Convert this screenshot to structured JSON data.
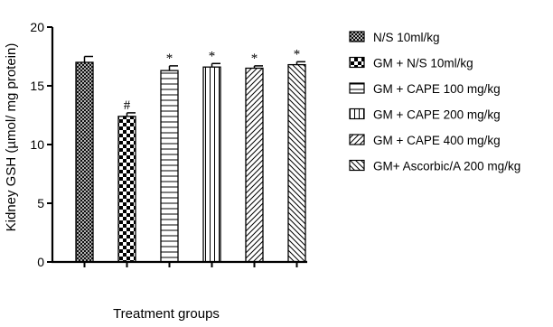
{
  "chart_data": {
    "type": "bar",
    "ylabel": "Kidney GSH (µmol/ mg protein)",
    "xlabel": "Treatment groups",
    "ylim": [
      0,
      20
    ],
    "yticks": [
      "0",
      "5",
      "10",
      "15",
      "20"
    ],
    "legend_position": "right",
    "series": [
      {
        "name": "N/S 10ml/kg",
        "value": 17.0,
        "error": 0.5,
        "annotation": "",
        "pattern": "crosshatch-fine"
      },
      {
        "name": "GM + N/S 10ml/kg",
        "value": 12.4,
        "error": 0.3,
        "annotation": "#",
        "pattern": "checker"
      },
      {
        "name": "GM + CAPE 100 mg/kg",
        "value": 16.3,
        "error": 0.4,
        "annotation": "*",
        "pattern": "horizontal"
      },
      {
        "name": "GM + CAPE 200 mg/kg",
        "value": 16.6,
        "error": 0.3,
        "annotation": "*",
        "pattern": "vertical"
      },
      {
        "name": "GM + CAPE 400 mg/kg",
        "value": 16.5,
        "error": 0.2,
        "annotation": "*",
        "pattern": "diag-up"
      },
      {
        "name": "GM+ Ascorbic/A 200 mg/kg",
        "value": 16.8,
        "error": 0.25,
        "annotation": "*",
        "pattern": "diag-down"
      }
    ]
  }
}
